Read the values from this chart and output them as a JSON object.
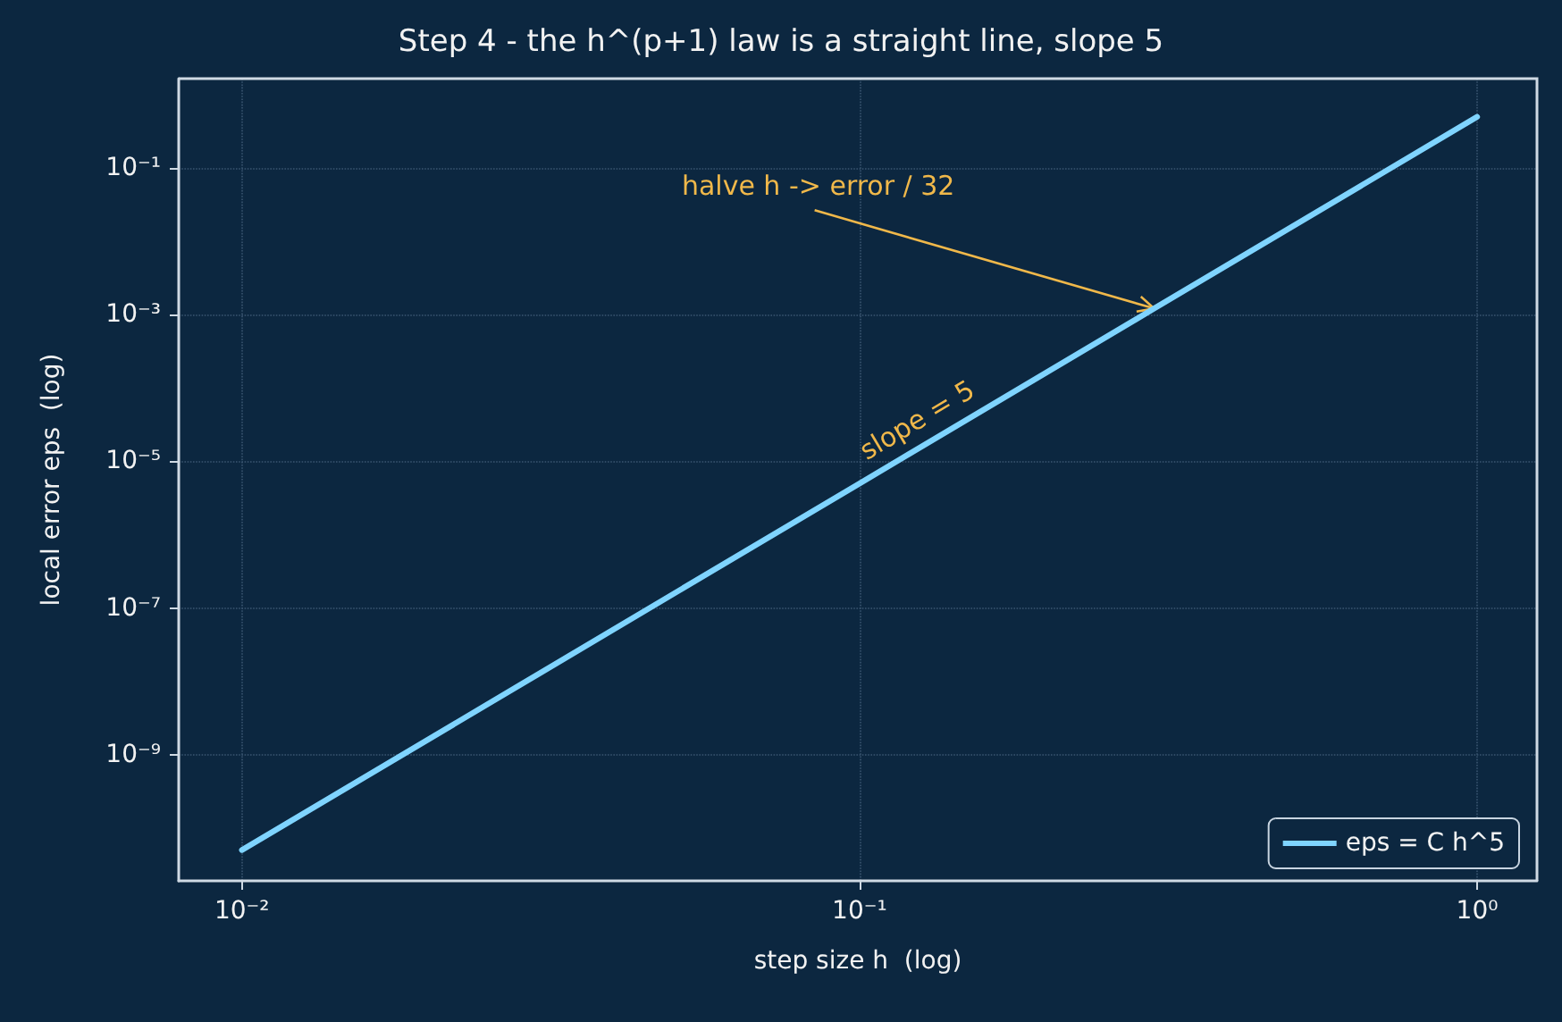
{
  "chart_data": {
    "type": "line",
    "title": "Step 4 - the h^(p+1) law is a straight line, slope 5",
    "xlabel": "step size h  (log)",
    "ylabel": "local error eps  (log)",
    "x": [
      0.01,
      0.03,
      0.1,
      0.3,
      1
    ],
    "series": [
      {
        "name": "eps = C h^5",
        "color": "#7fd4ff",
        "values": [
          5e-11,
          1.215e-08,
          5e-06,
          0.001215,
          0.5
        ]
      }
    ],
    "log": "xy",
    "xlim": [
      0.0079,
      1.25
    ],
    "ylim": [
      1.9e-11,
      1.66
    ],
    "xticks": [
      {
        "value": 0.01,
        "label": "10⁻²"
      },
      {
        "value": 0.1,
        "label": "10⁻¹"
      },
      {
        "value": 1,
        "label": "10⁰"
      }
    ],
    "yticks": [
      {
        "value": 1e-09,
        "label": "10⁻⁹"
      },
      {
        "value": 1e-07,
        "label": "10⁻⁷"
      },
      {
        "value": 1e-05,
        "label": "10⁻⁵"
      },
      {
        "value": 0.001,
        "label": "10⁻³"
      },
      {
        "value": 0.1,
        "label": "10⁻¹"
      }
    ],
    "annotations": [
      {
        "text": "halve h -> error / 32",
        "x": 0.3,
        "y": 0.001215
      },
      {
        "text": "slope = 5",
        "x": 0.13,
        "y": 1.86e-05
      }
    ],
    "grid": true,
    "legend": "bottom right",
    "marker": "none",
    "line_style": "solid"
  }
}
